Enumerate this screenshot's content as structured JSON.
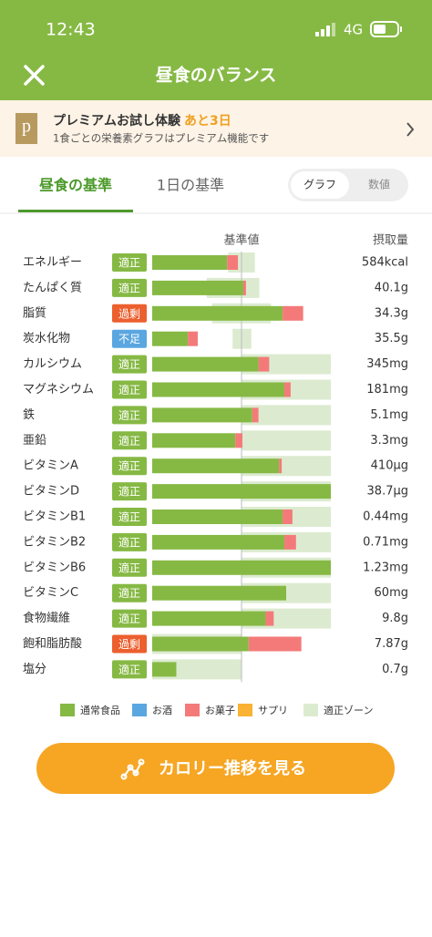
{
  "status_bar": {
    "time": "12:43",
    "network": "4G"
  },
  "header": {
    "title": "昼食のバランス"
  },
  "banner": {
    "icon": "p",
    "title": "プレミアムお試し体験",
    "highlight": "あと3日",
    "subtitle": "1食ごとの栄養素グラフはプレミアム機能です"
  },
  "tabs": [
    "昼食の基準",
    "1日の基準"
  ],
  "toggle": [
    "グラフ",
    "数値"
  ],
  "chart_data": {
    "type": "bar",
    "reference_label": "基準値",
    "intake_label": "摂取量",
    "categories": [
      "エネルギー",
      "たんぱく質",
      "脂質",
      "炭水化物",
      "カルシウム",
      "マグネシウム",
      "鉄",
      "亜鉛",
      "ビタミンA",
      "ビタミンD",
      "ビタミンB1",
      "ビタミンB2",
      "ビタミンB6",
      "ビタミンC",
      "食物繊維",
      "飽和脂肪酸",
      "塩分"
    ],
    "statuses": [
      "適正",
      "適正",
      "過剰",
      "不足",
      "適正",
      "適正",
      "適正",
      "適正",
      "適正",
      "適正",
      "適正",
      "適正",
      "適正",
      "適正",
      "適正",
      "過剰",
      "適正"
    ],
    "status_colors": {
      "適正": "#86b944",
      "過剰": "#ec5f2e",
      "不足": "#5aa6e0"
    },
    "intake": [
      "584kcal",
      "40.1g",
      "34.3g",
      "35.5g",
      "345mg",
      "181mg",
      "5.1mg",
      "3.3mg",
      "410μg",
      "38.7μg",
      "0.44mg",
      "0.71mg",
      "1.23mg",
      "60mg",
      "9.8g",
      "7.87g",
      "0.7g"
    ],
    "series": [
      {
        "name": "通常食品",
        "color": "#86b944",
        "values": [
          84,
          102,
          146,
          40,
          119,
          148,
          112,
          93,
          142,
          200,
          146,
          148,
          200,
          150,
          127,
          108,
          27
        ]
      },
      {
        "name": "お酒",
        "color": "#5aa6e0",
        "values": [
          0,
          0,
          0,
          0,
          0,
          0,
          0,
          0,
          0,
          0,
          0,
          0,
          0,
          0,
          0,
          0,
          0
        ]
      },
      {
        "name": "お菓子",
        "color": "#f47a7a",
        "values": [
          12,
          3,
          23,
          11,
          12,
          7,
          7,
          8,
          3,
          0,
          11,
          13,
          0,
          0,
          9,
          59,
          0
        ]
      },
      {
        "name": "サプリ",
        "color": "#f9b233",
        "values": [
          0,
          0,
          0,
          0,
          0,
          0,
          0,
          0,
          0,
          0,
          0,
          0,
          0,
          0,
          0,
          0,
          0
        ]
      }
    ],
    "zone_name": "適正ゾーン",
    "zone_color": "#dcebd0",
    "zones": [
      [
        85,
        115
      ],
      [
        61,
        120
      ],
      [
        67,
        133
      ],
      [
        90,
        111
      ],
      [
        100,
        200
      ],
      [
        100,
        200
      ],
      [
        100,
        200
      ],
      [
        100,
        200
      ],
      [
        100,
        200
      ],
      [
        100,
        200
      ],
      [
        100,
        200
      ],
      [
        100,
        200
      ],
      [
        100,
        200
      ],
      [
        100,
        200
      ],
      [
        100,
        200
      ],
      [
        0,
        100
      ],
      [
        0,
        100
      ]
    ],
    "reference": 100,
    "xlim": [
      0,
      200
    ]
  },
  "button": {
    "label": "カロリー推移を見る"
  }
}
